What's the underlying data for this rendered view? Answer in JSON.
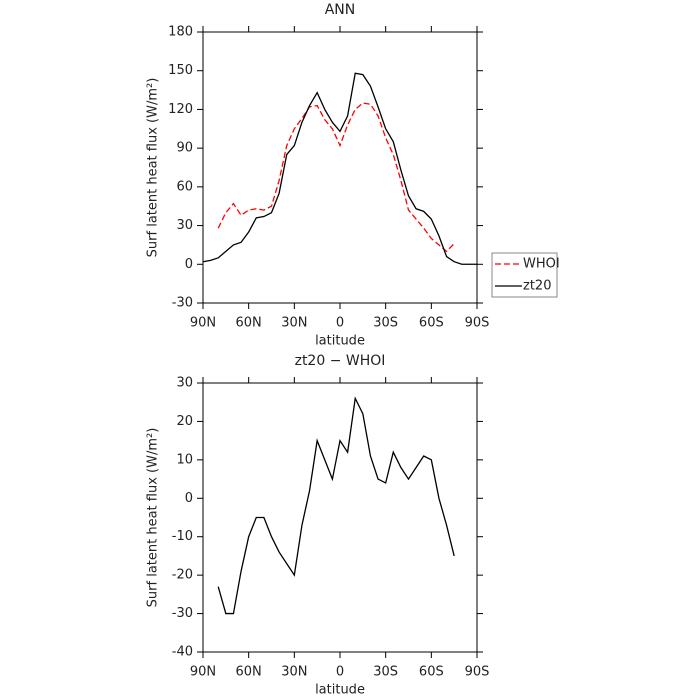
{
  "chart_data": [
    {
      "type": "line",
      "title": "ANN",
      "xlabel": "latitude",
      "ylabel": "Surf latent heat flux (W/m²)",
      "x": [
        90,
        85,
        80,
        75,
        70,
        65,
        60,
        55,
        50,
        45,
        40,
        35,
        30,
        25,
        20,
        15,
        10,
        5,
        0,
        -5,
        -10,
        -15,
        -20,
        -25,
        -30,
        -35,
        -40,
        -45,
        -50,
        -55,
        -60,
        -65,
        -70,
        -75,
        -80,
        -85,
        -90
      ],
      "series": [
        {
          "name": "WHOI",
          "color": "#ff0000",
          "style": "dashed",
          "values": [
            null,
            null,
            28,
            40,
            47,
            38,
            42,
            43,
            42,
            45,
            65,
            92,
            105,
            113,
            122,
            123,
            112,
            105,
            92,
            108,
            120,
            125,
            124,
            115,
            98,
            85,
            65,
            42,
            35,
            28,
            20,
            15,
            10,
            16,
            null,
            null,
            null
          ]
        },
        {
          "name": "zt20",
          "color": "#000000",
          "style": "solid",
          "values": [
            2,
            3,
            5,
            10,
            15,
            17,
            25,
            36,
            37,
            40,
            55,
            85,
            92,
            110,
            123,
            133,
            120,
            110,
            103,
            115,
            148,
            147,
            138,
            122,
            105,
            95,
            73,
            53,
            43,
            41,
            35,
            22,
            6,
            2,
            0,
            0,
            0
          ]
        }
      ],
      "xlim": [
        90,
        -90
      ],
      "xticks": [
        {
          "value": 90,
          "label": "90N"
        },
        {
          "value": 60,
          "label": "60N"
        },
        {
          "value": 30,
          "label": "30N"
        },
        0,
        {
          "value": -30,
          "label": "30S"
        },
        {
          "value": -60,
          "label": "60S"
        },
        {
          "value": -90,
          "label": "90S"
        }
      ],
      "ylim": [
        -30,
        180
      ],
      "yticks": [
        -30,
        0,
        30,
        60,
        90,
        120,
        150,
        180
      ],
      "legend": "right"
    },
    {
      "type": "line",
      "title": "zt20 − WHOI",
      "xlabel": "latitude",
      "ylabel": "Surf latent heat flux (W/m²)",
      "x": [
        80,
        75,
        70,
        65,
        60,
        55,
        50,
        45,
        40,
        35,
        30,
        25,
        20,
        15,
        10,
        5,
        0,
        -5,
        -10,
        -15,
        -20,
        -25,
        -30,
        -35,
        -40,
        -45,
        -50,
        -55,
        -60,
        -65,
        -70,
        -75
      ],
      "series": [
        {
          "color": "#000000",
          "style": "solid",
          "values": [
            -23,
            -30,
            -30,
            -19,
            -10,
            -5,
            -5,
            -10,
            -14,
            -17,
            -20,
            -7,
            2,
            15,
            10,
            5,
            15,
            12,
            26,
            22,
            11,
            5,
            4,
            12,
            8,
            5,
            8,
            11,
            10,
            0,
            -7,
            -15
          ]
        }
      ],
      "xlim": [
        90,
        -90
      ],
      "xticks": [
        {
          "value": 90,
          "label": "90N"
        },
        {
          "value": 60,
          "label": "60N"
        },
        {
          "value": 30,
          "label": "30N"
        },
        0,
        {
          "value": -30,
          "label": "30S"
        },
        {
          "value": -60,
          "label": "60S"
        },
        {
          "value": -90,
          "label": "90S"
        }
      ],
      "ylim": [
        -40,
        30
      ],
      "yticks": [
        -40,
        -30,
        -20,
        -10,
        0,
        10,
        20,
        30
      ]
    }
  ]
}
